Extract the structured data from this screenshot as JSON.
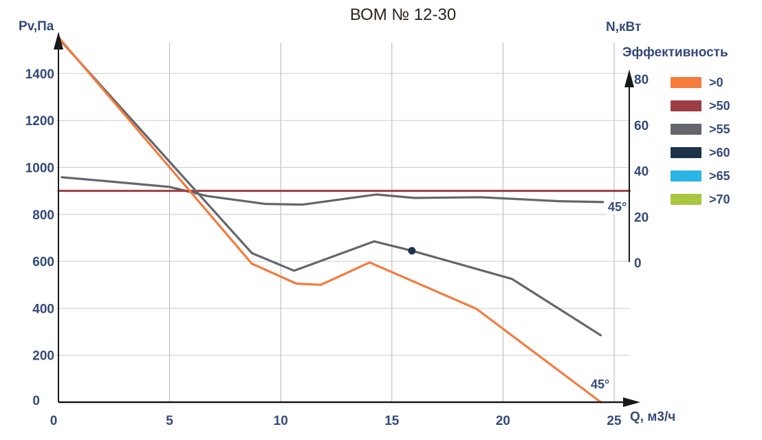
{
  "title": "ВОМ № 12-30",
  "axes": {
    "left": {
      "label": "Pv,Па",
      "ticks": [
        0,
        200,
        400,
        600,
        800,
        1000,
        1200,
        1400
      ]
    },
    "bottom": {
      "label": "Q, м3/ч",
      "ticks": [
        0,
        5,
        10,
        15,
        20,
        25
      ]
    },
    "right": {
      "label": "N,кВт",
      "ticks": [
        0,
        20,
        40,
        60,
        80
      ]
    }
  },
  "legend": {
    "title": "Эффективность",
    "items": [
      {
        "label": ">0",
        "color": "#F57A3C"
      },
      {
        "label": ">50",
        "color": "#9C3D43"
      },
      {
        "label": ">55",
        "color": "#63666C"
      },
      {
        "label": ">60",
        "color": "#1D3349"
      },
      {
        "label": ">65",
        "color": "#29B5E8"
      },
      {
        "label": ">70",
        "color": "#A8C63F"
      }
    ]
  },
  "annotations": [
    {
      "text": "45°",
      "near": "end of N curve"
    },
    {
      "text": "45°",
      "near": "end of orange Pv curve"
    }
  ],
  "colors": {
    "tick_text": "#33497B",
    "title_text": "#2B2119",
    "axis": "#17181A",
    "grid_horizontal": "#C9CCD1",
    "grid_vertical": "#AFB3BA",
    "background": "#FFFFFF"
  },
  "chart_data": {
    "type": "line",
    "title": "ВОМ № 12-30",
    "xlabel": "Q, м3/ч",
    "ylabel_left": "Pv,Па",
    "ylabel_right": "N,кВт",
    "x_ticks": [
      0,
      5,
      10,
      15,
      20,
      25
    ],
    "x_range": [
      0,
      25.7
    ],
    "y_left_ticks": [
      0,
      200,
      400,
      600,
      800,
      1000,
      1200,
      1400
    ],
    "y_left_range": [
      0,
      1560
    ],
    "y_right_ticks": [
      0,
      20,
      40,
      60,
      80
    ],
    "y_right_range": [
      0,
      80
    ],
    "grid": true,
    "legend_position": "right",
    "series": [
      {
        "name": "N-curve",
        "axis": "right",
        "color": "#63666C",
        "width": 3.2,
        "points": [
          [
            0.15,
            37.2
          ],
          [
            2.5,
            35.2
          ],
          [
            5,
            33
          ],
          [
            6.7,
            29
          ],
          [
            9.3,
            25.6
          ],
          [
            11,
            25.3
          ],
          [
            14.3,
            29.7
          ],
          [
            16,
            28.2
          ],
          [
            19,
            28.5
          ],
          [
            22.5,
            26.8
          ],
          [
            24.5,
            26.4
          ]
        ]
      },
      {
        "name": "efficiency-boundary-line",
        "axis": "left",
        "color": "#9C3D43",
        "width": 3,
        "points": [
          [
            0,
            900
          ],
          [
            25.7,
            900
          ]
        ]
      },
      {
        "name": "Pv-curve-gray",
        "axis": "left",
        "color": "#63666C",
        "width": 3.2,
        "points": [
          [
            0,
            1550
          ],
          [
            8.7,
            635
          ],
          [
            10.6,
            560
          ],
          [
            14.2,
            685
          ],
          [
            15.9,
            645
          ],
          [
            20.4,
            525
          ],
          [
            24.4,
            285
          ]
        ]
      },
      {
        "name": "Pv-curve-orange",
        "axis": "left",
        "color": "#F57A3C",
        "width": 3.2,
        "points": [
          [
            0,
            1555
          ],
          [
            8.7,
            590
          ],
          [
            10.7,
            505
          ],
          [
            11.8,
            500
          ],
          [
            14,
            595
          ],
          [
            18.8,
            398
          ],
          [
            24.4,
            0
          ]
        ]
      }
    ],
    "marker": {
      "x": 15.9,
      "y": 645,
      "axis": "left",
      "color": "#1D3349",
      "radius": 5.5
    }
  }
}
